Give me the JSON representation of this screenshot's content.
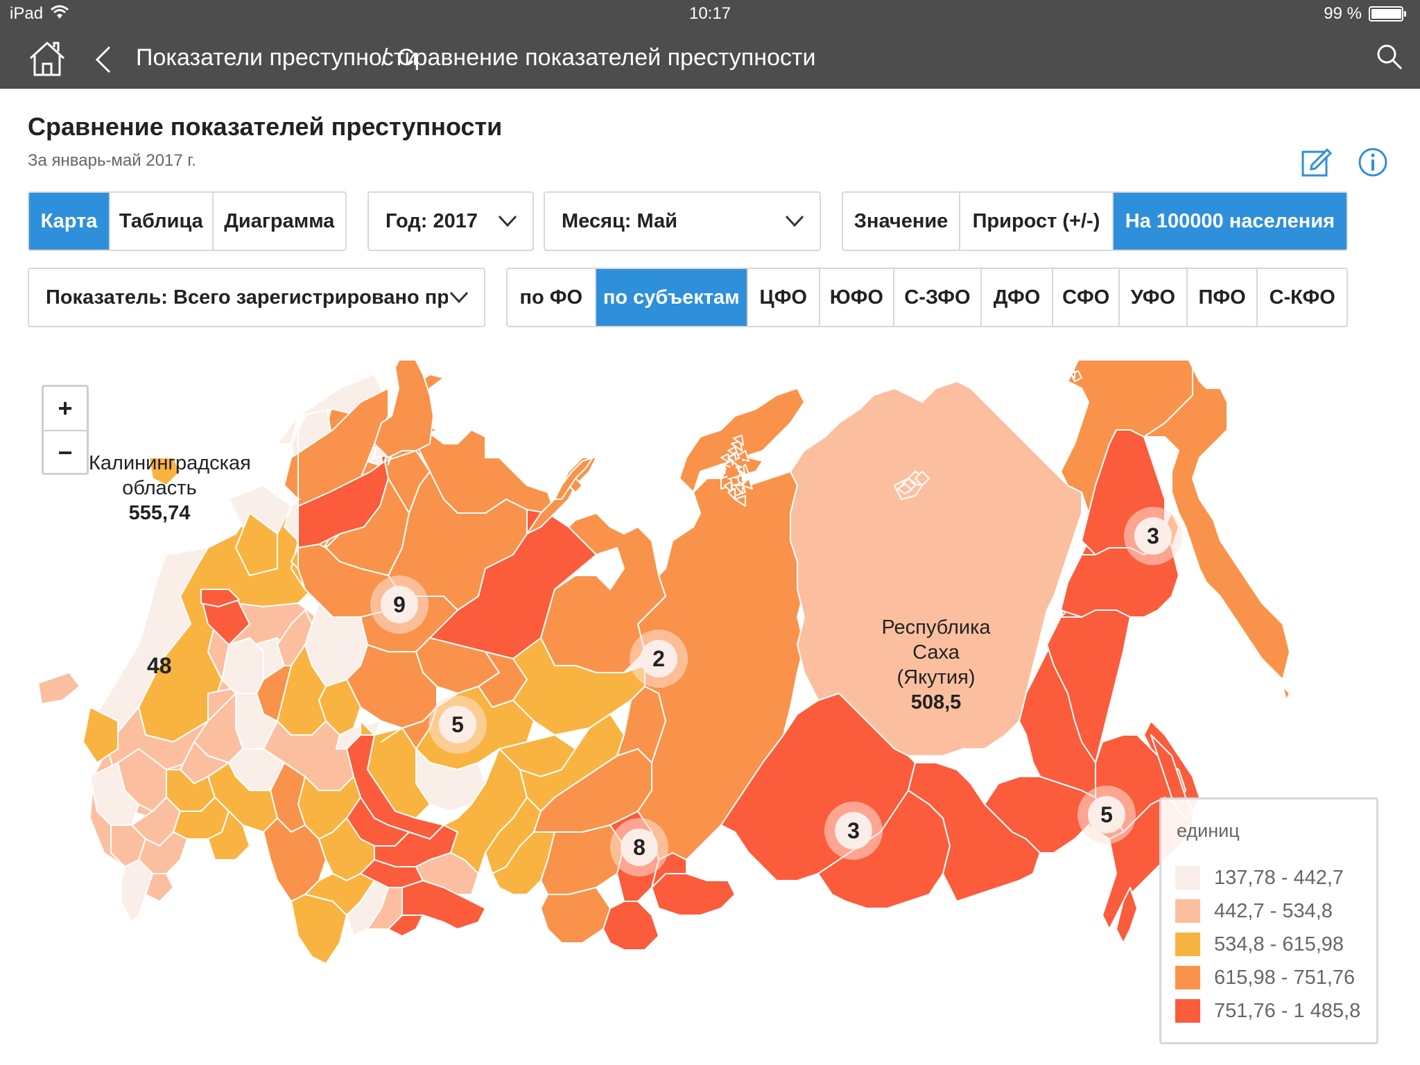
{
  "status_bar": {
    "device": "iPad",
    "time": "10:17",
    "battery": "99 %",
    "battery_level": 0.99
  },
  "nav": {
    "breadcrumb_1": "Показатели преступности",
    "separator": "/",
    "breadcrumb_2": "Сравнение показателей преступности"
  },
  "page": {
    "title": "Сравнение показателей преступности",
    "subtitle": "За январь-май 2017 г."
  },
  "view_tabs": {
    "items": [
      "Карта",
      "Таблица",
      "Диаграмма"
    ],
    "active": "Карта"
  },
  "year_select": {
    "label": "Год: 2017"
  },
  "month_select": {
    "label": "Месяц: Май"
  },
  "value_tabs": {
    "items": [
      "Значение",
      "Прирост (+/-)",
      "На 100000 населения"
    ],
    "active": "На 100000 населения"
  },
  "indicator_select": {
    "label": "Показатель: Всего зарегистрировано преступлений"
  },
  "region_tabs": {
    "items": [
      "по ФО",
      "по субъектам",
      "ЦФО",
      "ЮФО",
      "С-ЗФО",
      "ДФО",
      "СФО",
      "УФО",
      "ПФО",
      "С-КФО"
    ],
    "active": "по субъектам"
  },
  "zoom": {
    "in": "+",
    "out": "−"
  },
  "map": {
    "labels": [
      {
        "name": "Калининградская",
        "name2": "область",
        "value": "555,74"
      },
      {
        "name": "Республика",
        "name2": "Саха",
        "name3": "(Якутия)",
        "value": "508,5"
      }
    ],
    "clusters": [
      "48",
      "9",
      "5",
      "2",
      "8",
      "3",
      "3",
      "5"
    ]
  },
  "legend": {
    "title": "единиц",
    "items": [
      {
        "range": "137,78 - 442,7",
        "color": "#faeee8"
      },
      {
        "range": "442,7 - 534,8",
        "color": "#fbbf9f"
      },
      {
        "range": "534,8 - 615,98",
        "color": "#f9b341"
      },
      {
        "range": "615,98 - 751,76",
        "color": "#f9934b"
      },
      {
        "range": "751,76 - 1 485,8",
        "color": "#fb5c3c"
      }
    ]
  },
  "colors": {
    "accent": "#2e8fdb",
    "topbar": "#4d4d4d"
  }
}
